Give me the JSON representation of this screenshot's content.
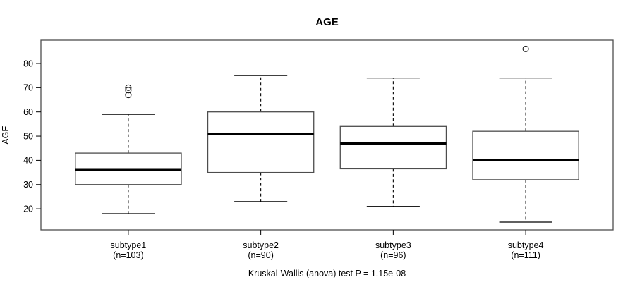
{
  "chart_data": {
    "type": "boxplot",
    "title": "AGE",
    "ylabel": "AGE",
    "xlabel": "",
    "caption": "Kruskal-Wallis (anova) test P = 1.15e-08",
    "yticks": [
      20,
      30,
      40,
      50,
      60,
      70,
      80
    ],
    "ylim": [
      11.3,
      89.6
    ],
    "grid": false,
    "legend": "none",
    "categories": [
      {
        "label": "subtype1",
        "sublabel": "(n=103)",
        "n": 103,
        "whisker_low": 18,
        "q1": 30,
        "median": 36,
        "q3": 43,
        "whisker_high": 59,
        "outliers": [
          67,
          69,
          70
        ]
      },
      {
        "label": "subtype2",
        "sublabel": "(n=90)",
        "n": 90,
        "whisker_low": 23,
        "q1": 35,
        "median": 51,
        "q3": 60,
        "whisker_high": 75,
        "outliers": []
      },
      {
        "label": "subtype3",
        "sublabel": "(n=96)",
        "n": 96,
        "whisker_low": 21,
        "q1": 36.5,
        "median": 47,
        "q3": 54,
        "whisker_high": 74,
        "outliers": []
      },
      {
        "label": "subtype4",
        "sublabel": "(n=111)",
        "n": 111,
        "whisker_low": 14.5,
        "q1": 32,
        "median": 40,
        "q3": 52,
        "whisker_high": 74,
        "outliers": [
          86
        ]
      }
    ],
    "colors": {
      "line": "#000000",
      "box_outline": "#4d4d4d",
      "frame": "#4d4d4d",
      "background": "#ffffff"
    }
  }
}
